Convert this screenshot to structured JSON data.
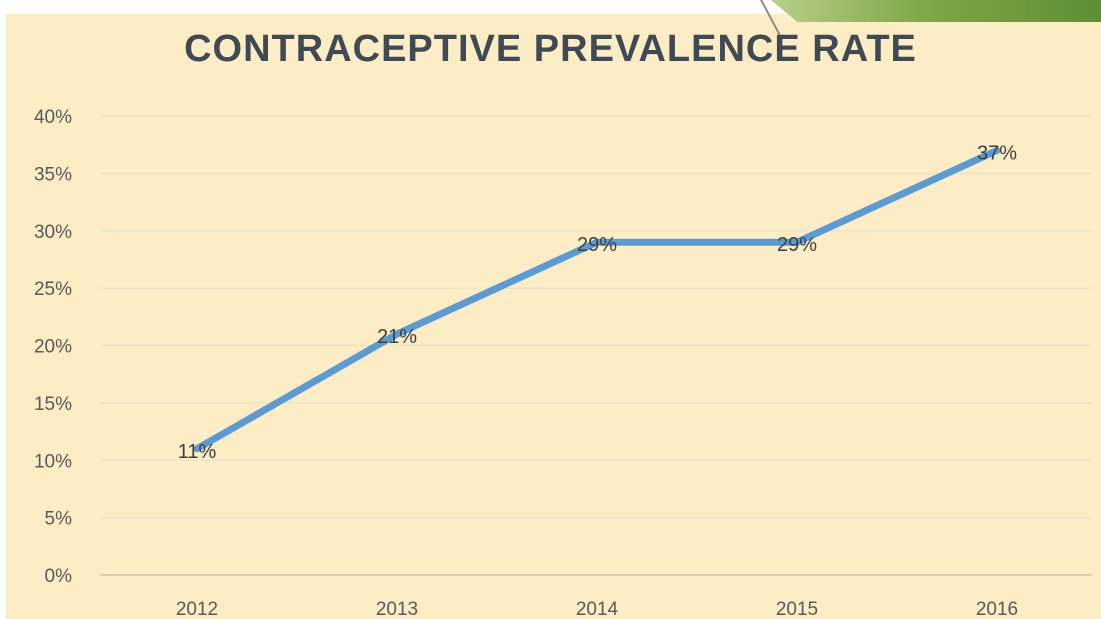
{
  "chart_data": {
    "type": "line",
    "title": "CONTRACEPTIVE PREVALENCE RATE",
    "categories": [
      "2012",
      "2013",
      "2014",
      "2015",
      "2016"
    ],
    "series": [
      {
        "values": [
          11,
          21,
          29,
          29,
          37
        ],
        "color": "#5b9bd5"
      }
    ],
    "data_labels": [
      "11%",
      "21%",
      "29%",
      "29%",
      "37%"
    ],
    "yticks": [
      "0%",
      "5%",
      "10%",
      "15%",
      "20%",
      "25%",
      "30%",
      "35%",
      "40%"
    ],
    "ylim": [
      0,
      40
    ],
    "grid": true,
    "legend": "none"
  },
  "colors": {
    "background": "#fcedc4",
    "title": "#3f4a55",
    "accent_band": "#6f9b3c"
  }
}
